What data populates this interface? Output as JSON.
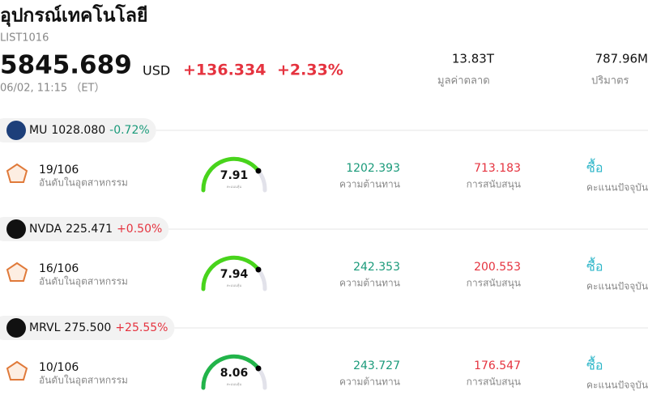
{
  "header": {
    "title": "อุปกรณ์เทคโนโลยี",
    "code": "LIST1016",
    "price": "5845.689",
    "currency": "USD",
    "change": "+136.334",
    "change_pct": "+2.33%",
    "time": "06/02, 11:15 （ET）",
    "stats": [
      {
        "value": "13.83T",
        "label": "มูลค่าตลาด"
      },
      {
        "value": "787.96M",
        "label": "ปริมาตร"
      }
    ]
  },
  "stocks": [
    {
      "ticker": "MU",
      "price": "1028.080",
      "change": "-0.72%",
      "rank": "19/106",
      "rank_label": "อันดับในอุตสาหกรรม",
      "score": "7.91",
      "score_label": "คะแนนหุ้น",
      "resistance": "1202.393",
      "resistance_label": "ความต้านทาน",
      "support": "713.183",
      "support_label": "การสนับสนุน",
      "rating": "ซื้อ",
      "rating_label": "คะแนนปัจจุบัน"
    },
    {
      "ticker": "NVDA",
      "price": "225.471",
      "change": "+0.50%",
      "rank": "16/106",
      "rank_label": "อันดับในอุตสาหกรรม",
      "score": "7.94",
      "score_label": "คะแนนหุ้น",
      "resistance": "242.353",
      "resistance_label": "ความต้านทาน",
      "support": "200.553",
      "support_label": "การสนับสนุน",
      "rating": "ซื้อ",
      "rating_label": "คะแนนปัจจุบัน"
    },
    {
      "ticker": "MRVL",
      "price": "275.500",
      "change": "+25.55%",
      "rank": "10/106",
      "rank_label": "อันดับในอุตสาหกรรม",
      "score": "8.06",
      "score_label": "คะแนนหุ้น",
      "resistance": "243.727",
      "resistance_label": "ความต้านทาน",
      "support": "176.547",
      "support_label": "การสนับสนุน",
      "rating": "ซื้อ",
      "rating_label": "คะแนนปัจจุบัน"
    }
  ]
}
